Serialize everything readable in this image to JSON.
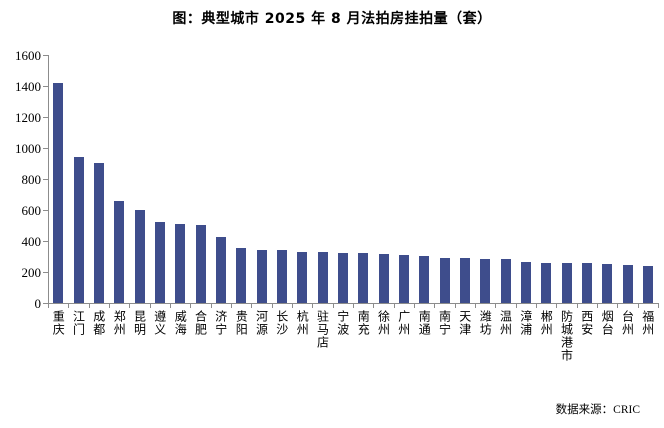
{
  "chart_data": {
    "type": "bar",
    "title": "图：典型城市 2025 年 8 月法拍房挂拍量（套）",
    "xlabel": "",
    "ylabel": "",
    "ylim": [
      0,
      1600
    ],
    "y_ticks": [
      0,
      200,
      400,
      600,
      800,
      1000,
      1200,
      1400,
      1600
    ],
    "grid": false,
    "legend": false,
    "bar_color": "#3e4d8c",
    "categories": [
      "重庆",
      "江门",
      "成都",
      "郑州",
      "昆明",
      "遵义",
      "威海",
      "合肥",
      "济宁",
      "贵阳",
      "河源",
      "长沙",
      "杭州",
      "驻马店",
      "宁波",
      "南充",
      "徐州",
      "广州",
      "南通",
      "南宁",
      "天津",
      "潍坊",
      "温州",
      "漳浦",
      "郴州",
      "防城港市",
      "西安",
      "烟台",
      "台州",
      "福州"
    ],
    "values": [
      1420,
      940,
      900,
      660,
      600,
      520,
      510,
      500,
      427,
      352,
      344,
      340,
      331,
      327,
      325,
      323,
      314,
      312,
      305,
      292,
      290,
      285,
      282,
      264,
      261,
      260,
      258,
      253,
      242,
      240
    ]
  },
  "source": "数据来源：CRIC",
  "colors": {
    "bar": "#3e4d8c",
    "axis": "#8c8c8c",
    "text": "#000000",
    "background": "#ffffff"
  }
}
